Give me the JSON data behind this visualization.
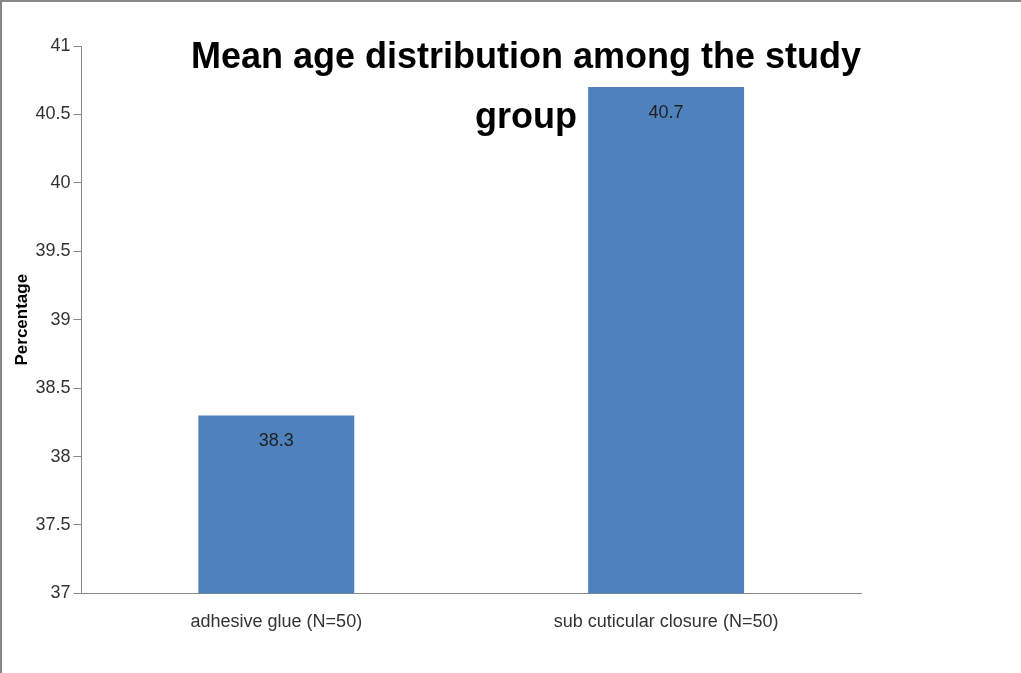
{
  "chart_data": {
    "type": "bar",
    "title": "Mean age distribution among the study group",
    "ylabel": "Percentage",
    "categories": [
      "adhesive glue (N=50)",
      "sub cuticular closure (N=50)"
    ],
    "values": [
      38.3,
      40.7
    ],
    "color": "#4f81bd",
    "ylim": [
      37,
      41
    ],
    "yticks": [
      37,
      37.5,
      38,
      38.5,
      39,
      39.5,
      40,
      40.5,
      41
    ],
    "grid": false,
    "legend": false,
    "data_labels": true
  }
}
